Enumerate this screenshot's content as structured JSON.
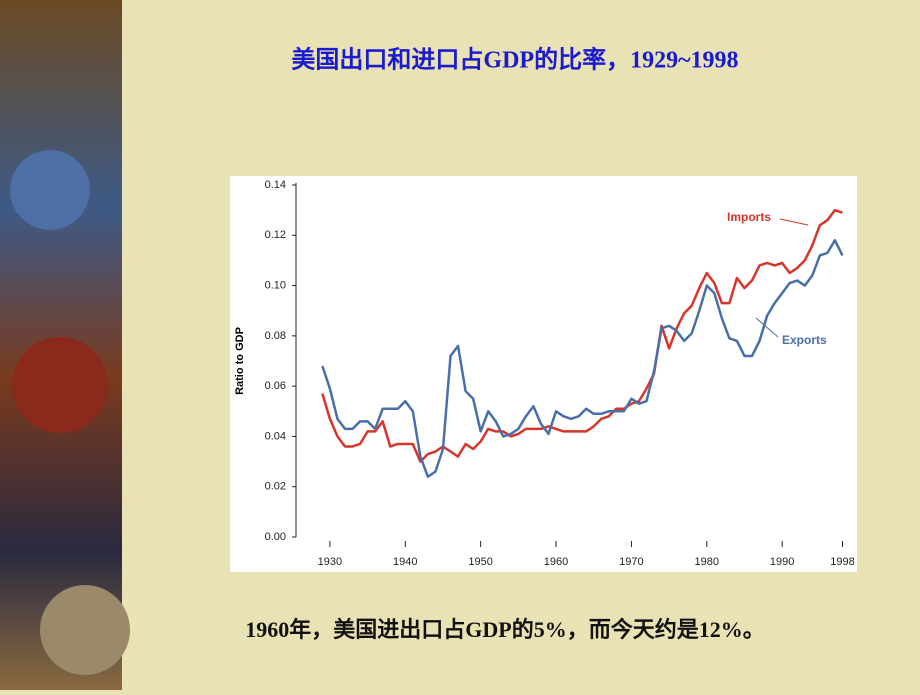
{
  "chart_data": {
    "type": "line",
    "title": "美国出口和进口占GDP的比率，1929~1998",
    "caption": "1960年，美国进出口占GDP的5%，而今天约是12%。",
    "y_label": "Ratio to GDP",
    "x": [
      1929,
      1930,
      1931,
      1932,
      1933,
      1934,
      1935,
      1936,
      1937,
      1938,
      1939,
      1940,
      1941,
      1942,
      1943,
      1944,
      1945,
      1946,
      1947,
      1948,
      1949,
      1950,
      1951,
      1952,
      1953,
      1954,
      1955,
      1956,
      1957,
      1958,
      1959,
      1960,
      1961,
      1962,
      1963,
      1964,
      1965,
      1966,
      1967,
      1968,
      1969,
      1970,
      1971,
      1972,
      1973,
      1974,
      1975,
      1976,
      1977,
      1978,
      1979,
      1980,
      1981,
      1982,
      1983,
      1984,
      1985,
      1986,
      1987,
      1988,
      1989,
      1990,
      1991,
      1992,
      1993,
      1994,
      1995,
      1996,
      1997,
      1998
    ],
    "series": [
      {
        "name": "Imports",
        "color": "#d8352a",
        "values": [
          0.057,
          0.047,
          0.04,
          0.036,
          0.036,
          0.037,
          0.042,
          0.042,
          0.046,
          0.036,
          0.037,
          0.037,
          0.037,
          0.03,
          0.033,
          0.034,
          0.036,
          0.034,
          0.032,
          0.037,
          0.035,
          0.038,
          0.043,
          0.042,
          0.042,
          0.04,
          0.041,
          0.043,
          0.043,
          0.043,
          0.044,
          0.043,
          0.042,
          0.042,
          0.042,
          0.042,
          0.044,
          0.047,
          0.048,
          0.051,
          0.051,
          0.053,
          0.054,
          0.059,
          0.065,
          0.084,
          0.075,
          0.083,
          0.089,
          0.092,
          0.099,
          0.105,
          0.101,
          0.093,
          0.093,
          0.103,
          0.099,
          0.102,
          0.108,
          0.109,
          0.108,
          0.109,
          0.105,
          0.107,
          0.11,
          0.116,
          0.124,
          0.126,
          0.13,
          0.129
        ]
      },
      {
        "name": "Exports",
        "color": "#4a6fa8",
        "values": [
          0.068,
          0.059,
          0.047,
          0.043,
          0.043,
          0.046,
          0.046,
          0.043,
          0.051,
          0.051,
          0.051,
          0.054,
          0.05,
          0.032,
          0.024,
          0.026,
          0.035,
          0.072,
          0.076,
          0.058,
          0.055,
          0.042,
          0.05,
          0.046,
          0.04,
          0.041,
          0.043,
          0.048,
          0.052,
          0.045,
          0.041,
          0.05,
          0.048,
          0.047,
          0.048,
          0.051,
          0.049,
          0.049,
          0.05,
          0.05,
          0.05,
          0.055,
          0.053,
          0.054,
          0.066,
          0.083,
          0.084,
          0.082,
          0.078,
          0.081,
          0.09,
          0.1,
          0.097,
          0.087,
          0.079,
          0.078,
          0.072,
          0.072,
          0.078,
          0.088,
          0.093,
          0.097,
          0.101,
          0.102,
          0.1,
          0.104,
          0.112,
          0.113,
          0.118,
          0.112
        ]
      }
    ],
    "xlim": [
      1925.5,
      1999
    ],
    "xticks": [
      1930,
      1940,
      1950,
      1960,
      1970,
      1980,
      1990,
      1998
    ],
    "ylim": [
      0,
      0.14
    ],
    "yticks": [
      {
        "value": 0,
        "label": "0.00"
      },
      {
        "value": 0.02,
        "label": "0.02"
      },
      {
        "value": 0.04,
        "label": "0.04"
      },
      {
        "value": 0.06,
        "label": "0.06"
      },
      {
        "value": 0.08,
        "label": "0.08"
      },
      {
        "value": 0.1,
        "label": "0.10"
      },
      {
        "value": 0.12,
        "label": "0.12"
      },
      {
        "value": 0.14,
        "label": "0.14"
      }
    ]
  }
}
